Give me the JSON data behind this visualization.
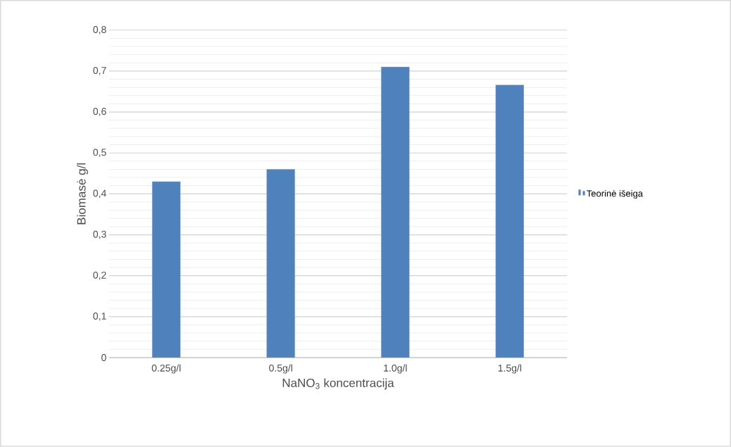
{
  "chart_data": {
    "type": "bar",
    "xlabel": "NaNO$_{3}$ koncentracija",
    "ylabel": "Biomasė g/l",
    "categories": [
      "0.25g/l",
      "0.5g/l",
      "1.0g/l",
      "1.5g/l"
    ],
    "series": [
      {
        "name": "Teorinė išeiga",
        "color": "#4f81bd",
        "values": [
          0.43,
          0.46,
          0.71,
          0.666
        ]
      }
    ],
    "ylim": [
      0,
      0.8
    ],
    "yticks": [
      0,
      {
        "value": 0.1,
        "label": "0,1"
      },
      {
        "value": 0.2,
        "label": "0,2"
      },
      {
        "value": 0.3,
        "label": "0,3"
      },
      {
        "value": 0.4,
        "label": "0,4"
      },
      {
        "value": 0.5,
        "label": "0,5"
      },
      {
        "value": 0.6,
        "label": "0,6"
      },
      {
        "value": 0.7,
        "label": "0,7"
      },
      {
        "value": 0.8,
        "label": "0,8"
      }
    ],
    "grid": "y",
    "legend": "right"
  }
}
